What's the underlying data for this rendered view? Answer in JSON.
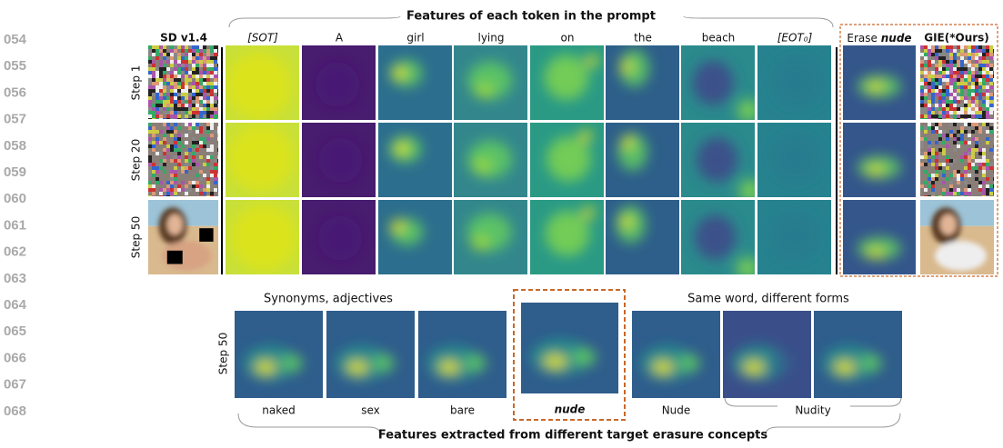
{
  "line_numbers": [
    "054",
    "055",
    "056",
    "057",
    "058",
    "059",
    "060",
    "061",
    "062",
    "063",
    "064",
    "065",
    "066",
    "067",
    "068"
  ],
  "top": {
    "title": "Features of each token in the prompt",
    "baseline": "SD v1.4",
    "tokens": [
      "[SOT]",
      "A",
      "girl",
      "lying",
      "on",
      "the",
      "beach",
      "[EOT₀]"
    ],
    "erase": {
      "prefix": "Erase",
      "word": "nude"
    },
    "ours": "GIE(*Ours)",
    "rows": [
      "Step 1",
      "Step 20",
      "Step 50"
    ]
  },
  "bottom": {
    "group_left": "Synonyms, adjectives",
    "group_right": "Same word, different forms",
    "row": "Step 50",
    "labels": [
      "naked",
      "sex",
      "bare",
      "nude",
      "Nude",
      "Nudity"
    ],
    "caption": "Features extracted from different target erasure concepts"
  }
}
